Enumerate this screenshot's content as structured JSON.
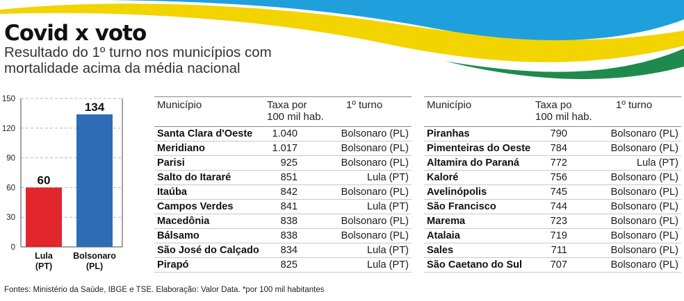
{
  "title": "Covid x voto",
  "subtitle": "Resultado do 1º turno nos municípios com mortalidade acima da média nacional",
  "colors": {
    "lula": "#e1262c",
    "bolsonaro": "#2d6db5",
    "swoosh_green": "#1e8a4c",
    "swoosh_yellow": "#f2d400",
    "swoosh_blue": "#1fa0dc"
  },
  "chart_data": {
    "type": "bar",
    "categories": [
      "Lula (PT)",
      "Bolsonaro (PL)"
    ],
    "category_lines": [
      [
        "Lula",
        "(PT)"
      ],
      [
        "Bolsonaro",
        "(PL)"
      ]
    ],
    "values": [
      60,
      134
    ],
    "ylim": [
      0,
      150
    ],
    "yticks": [
      0,
      30,
      60,
      90,
      120,
      150
    ],
    "grid": true
  },
  "table_left": {
    "headers": {
      "municipio": "Município",
      "taxa": [
        "Taxa por",
        "100 mil hab."
      ],
      "turno": "1º turno"
    },
    "rows": [
      {
        "municipio": "Santa Clara d'Oeste",
        "taxa": "1.040",
        "turno": "Bolsonaro (PL)"
      },
      {
        "municipio": "Meridiano",
        "taxa": "1.017",
        "turno": "Bolsonaro (PL)"
      },
      {
        "municipio": "Parisi",
        "taxa": "925",
        "turno": "Bolsonaro (PL)"
      },
      {
        "municipio": "Salto do Itararé",
        "taxa": "851",
        "turno": "Lula (PT)"
      },
      {
        "municipio": "Itaúba",
        "taxa": "842",
        "turno": "Bolsonaro (PL)"
      },
      {
        "municipio": "Campos Verdes",
        "taxa": "841",
        "turno": "Lula (PT)"
      },
      {
        "municipio": "Macedônia",
        "taxa": "838",
        "turno": "Bolsonaro (PL)"
      },
      {
        "municipio": "Bálsamo",
        "taxa": "838",
        "turno": "Bolsonaro (PL)"
      },
      {
        "municipio": "São José do Calçado",
        "taxa": "834",
        "turno": "Lula (PT)"
      },
      {
        "municipio": "Pirapó",
        "taxa": "825",
        "turno": "Lula (PT)"
      }
    ]
  },
  "table_right": {
    "headers": {
      "municipio": "Município",
      "taxa": [
        "Taxa po",
        "100 mil hab."
      ],
      "turno": "1º turno"
    },
    "rows": [
      {
        "municipio": "Piranhas",
        "taxa": "790",
        "turno": "Bolsonaro (PL)"
      },
      {
        "municipio": "Pimenteiras do Oeste",
        "taxa": "784",
        "turno": "Bolsonaro (PL)"
      },
      {
        "municipio": "Altamira do Paraná",
        "taxa": "772",
        "turno": "Lula (PT)"
      },
      {
        "municipio": "Kaloré",
        "taxa": "756",
        "turno": "Bolsonaro (PL)"
      },
      {
        "municipio": "Avelinópolis",
        "taxa": "745",
        "turno": "Bolsonaro (PL)"
      },
      {
        "municipio": "São Francisco",
        "taxa": "744",
        "turno": "Bolsonaro (PL)"
      },
      {
        "municipio": "Marema",
        "taxa": "723",
        "turno": "Bolsonaro (PL)"
      },
      {
        "municipio": "Atalaia",
        "taxa": "719",
        "turno": "Bolsonaro (PL)"
      },
      {
        "municipio": "Sales",
        "taxa": "711",
        "turno": "Bolsonaro (PL)"
      },
      {
        "municipio": "São Caetano do Sul",
        "taxa": "707",
        "turno": "Bolsonaro (PL)"
      }
    ]
  },
  "source": "Fontes: Ministério da Saúde, IBGE e TSE. Elaboração: Valor Data. *por 100 mil habitantes"
}
